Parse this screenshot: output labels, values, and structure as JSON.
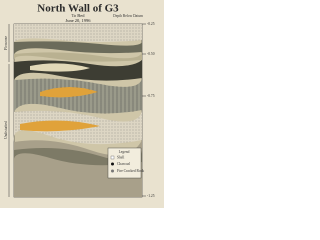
{
  "header": {
    "title": "North Wall of G3",
    "subtitle": "To Bed",
    "date": "June 20, 1996",
    "axis_label": "Depth Below Datum"
  },
  "depths": [
    "-0.25",
    "-0.50",
    "-0.75",
    "-1.25"
  ],
  "zones": [
    "Plowzone",
    "Undisturbed"
  ],
  "legend": {
    "title": "Legend",
    "items": [
      "Shell",
      "Charcoal",
      "Fire Cracked Rock"
    ]
  }
}
